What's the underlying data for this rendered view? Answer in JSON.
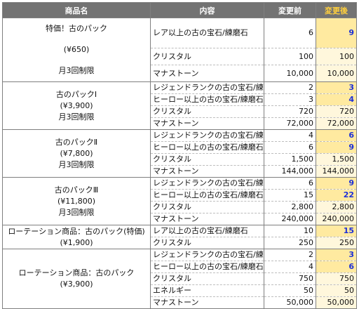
{
  "headers": {
    "product": "商品名",
    "content": "内容",
    "before": "変更前",
    "after": "変更後"
  },
  "colors": {
    "header_bg": "#737373",
    "after_header_text": "#ffcf3d",
    "highlight_bg": "#ffeaa0",
    "highlight_text": "#1c2fd8"
  },
  "groups": [
    {
      "lines": [
        "特価！古のパック",
        "(¥650)",
        "月3回制限"
      ],
      "tall_first": true,
      "rows": [
        {
          "item": "レア以上の古の宝石/練磨石",
          "before": "6",
          "after": "9",
          "changed": true
        },
        {
          "item": "クリスタル",
          "before": "100",
          "after": "100",
          "changed": false
        },
        {
          "item": "マナストーン",
          "before": "10,000",
          "after": "10,000",
          "changed": false
        }
      ]
    },
    {
      "lines": [
        "古のパックⅠ",
        "(¥3,900)",
        "月3回制限"
      ],
      "tall_first": false,
      "rows": [
        {
          "item": "レジェンドランクの古の宝石/練磨石",
          "before": "2",
          "after": "3",
          "changed": true
        },
        {
          "item": "ヒーロー以上の古の宝石/練磨石",
          "before": "3",
          "after": "4",
          "changed": true
        },
        {
          "item": "クリスタル",
          "before": "720",
          "after": "720",
          "changed": false
        },
        {
          "item": "マナストーン",
          "before": "72,000",
          "after": "72,000",
          "changed": false
        }
      ]
    },
    {
      "lines": [
        "古のパックⅡ",
        "(¥7,800)",
        "月3回制限"
      ],
      "tall_first": false,
      "rows": [
        {
          "item": "レジェンドランクの古の宝石/練磨石",
          "before": "4",
          "after": "6",
          "changed": true
        },
        {
          "item": "ヒーロー以上の古の宝石/練磨石",
          "before": "6",
          "after": "9",
          "changed": true
        },
        {
          "item": "クリスタル",
          "before": "1,500",
          "after": "1,500",
          "changed": false
        },
        {
          "item": "マナストーン",
          "before": "144,000",
          "after": "144,000",
          "changed": false
        }
      ]
    },
    {
      "lines": [
        "古のパックⅢ",
        "(¥11,800)",
        "月3回制限"
      ],
      "tall_first": false,
      "rows": [
        {
          "item": "レジェンドランクの古の宝石/練磨石",
          "before": "6",
          "after": "9",
          "changed": true
        },
        {
          "item": "ヒーロー以上の古の宝石/練磨石",
          "before": "15",
          "after": "22",
          "changed": true
        },
        {
          "item": "クリスタル",
          "before": "2,800",
          "after": "2,800",
          "changed": false
        },
        {
          "item": "マナストーン",
          "before": "240,000",
          "after": "240,000",
          "changed": false
        }
      ]
    },
    {
      "lines": [
        "ローテーション商品：古のパック(特価)",
        "(¥1,900)"
      ],
      "tall_first": false,
      "rows": [
        {
          "item": "レア以上の古の宝石/練磨石",
          "before": "10",
          "after": "15",
          "changed": true
        },
        {
          "item": "クリスタル",
          "before": "250",
          "after": "250",
          "changed": false
        }
      ]
    },
    {
      "lines": [
        "ローテーション商品：古のパック",
        "(¥3,900)"
      ],
      "tall_first": false,
      "rows": [
        {
          "item": "レジェンドランクの古の宝石/練磨石",
          "before": "2",
          "after": "3",
          "changed": true
        },
        {
          "item": "ヒーロー以上の古の宝石/練磨石",
          "before": "4",
          "after": "6",
          "changed": true
        },
        {
          "item": "クリスタル",
          "before": "750",
          "after": "750",
          "changed": false
        },
        {
          "item": "エネルギー",
          "before": "50",
          "after": "50",
          "changed": false
        },
        {
          "item": "マナストーン",
          "before": "50,000",
          "after": "50,000",
          "changed": false
        }
      ]
    }
  ]
}
